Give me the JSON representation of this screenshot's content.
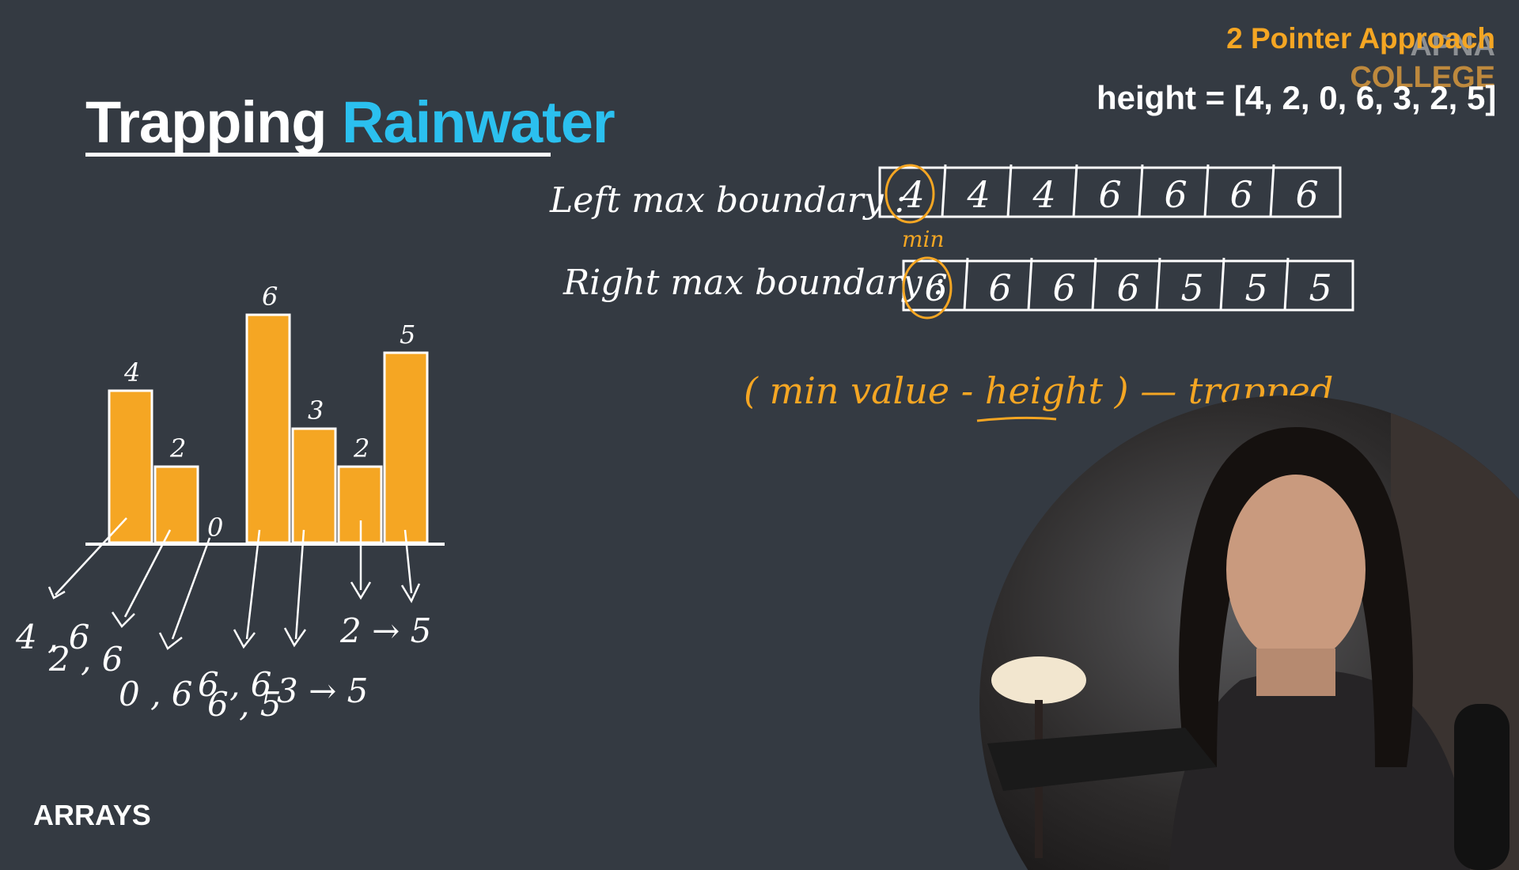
{
  "header": {
    "title_part1": "Trapping",
    "title_part2": "Rainwater",
    "approach_label": "2 Pointer Approach",
    "logo_line1": "APNA",
    "logo_line2": "COLLEGE",
    "height_array": "height = [4, 2, 0, 6, 3, 2, 5]"
  },
  "footer": {
    "section_tag": "ARRAYS"
  },
  "bar_chart": {
    "heights": [
      4,
      2,
      0,
      6,
      3,
      2,
      5
    ],
    "labels": [
      "4",
      "2",
      "0",
      "6",
      "3",
      "2",
      "5"
    ],
    "bar_color": "#f5a623"
  },
  "notes": {
    "left_max_label": "Left max boundary :",
    "left_max_values": [
      "4",
      "4",
      "4",
      "6",
      "6",
      "6",
      "6"
    ],
    "min_label": "min",
    "right_max_label": "Right max boundary :",
    "right_max_values": [
      "6",
      "6",
      "6",
      "6",
      "5",
      "5",
      "5"
    ],
    "formula": "( min value - height ) — trapped",
    "pairs": [
      "4 , 6",
      "2 , 6",
      "0 , 6",
      "6 , 6",
      "6 , 5",
      "3 → 5",
      "2 → 5"
    ]
  },
  "colors": {
    "background": "#343a42",
    "accent": "#f5a623",
    "highlight": "#2bc0ef",
    "text": "#ffffff"
  }
}
